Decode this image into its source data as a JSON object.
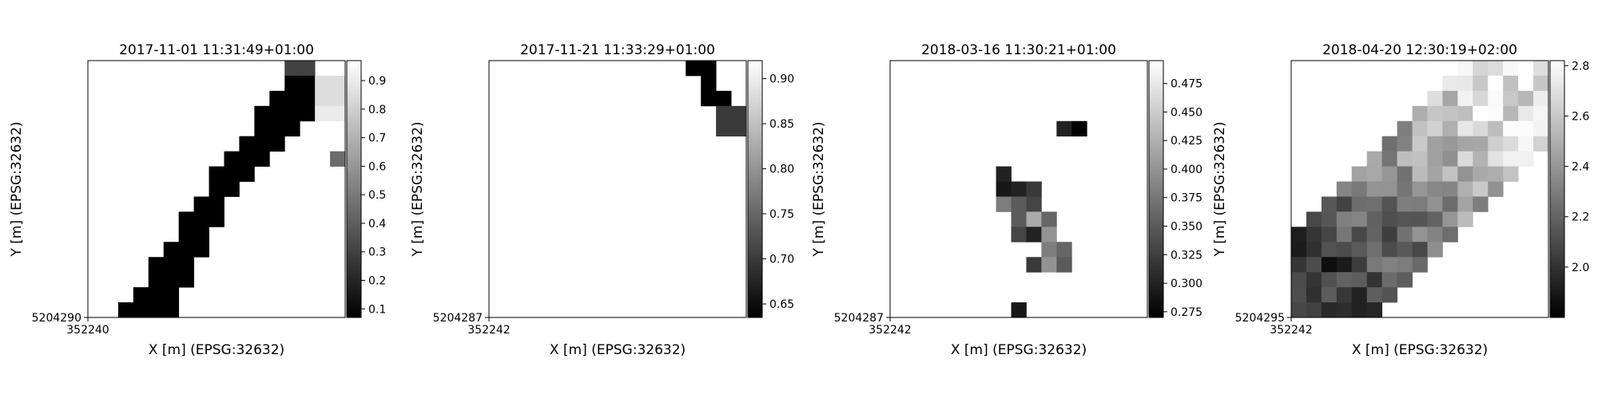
{
  "chart_data": [
    {
      "type": "heatmap",
      "title": "2017-11-01 11:31:49+01:00",
      "xlabel": "X [m] (EPSG:32632)",
      "ylabel": "Y [m] (EPSG:32632)",
      "x_tick_label": "352240",
      "y_tick_label": "5204290",
      "colormap": "gray",
      "clim": [
        0.07,
        0.97
      ],
      "colorbar_ticks": [
        "0.1",
        "0.2",
        "0.3",
        "0.4",
        "0.5",
        "0.6",
        "0.7",
        "0.8",
        "0.9"
      ],
      "grid_size": [
        17,
        17
      ],
      "cells": [
        [
          13,
          0,
          0.3
        ],
        [
          14,
          0,
          0.3
        ],
        [
          13,
          1,
          0.07
        ],
        [
          14,
          1,
          0.07
        ],
        [
          15,
          1,
          0.85
        ],
        [
          16,
          1,
          0.85
        ],
        [
          12,
          2,
          0.07
        ],
        [
          13,
          2,
          0.07
        ],
        [
          14,
          2,
          0.07
        ],
        [
          15,
          2,
          0.85
        ],
        [
          16,
          2,
          0.85
        ],
        [
          11,
          3,
          0.07
        ],
        [
          12,
          3,
          0.07
        ],
        [
          13,
          3,
          0.07
        ],
        [
          14,
          3,
          0.07
        ],
        [
          15,
          3,
          0.9
        ],
        [
          16,
          3,
          0.9
        ],
        [
          11,
          4,
          0.07
        ],
        [
          12,
          4,
          0.07
        ],
        [
          13,
          4,
          0.07
        ],
        [
          10,
          5,
          0.07
        ],
        [
          11,
          5,
          0.07
        ],
        [
          12,
          5,
          0.07
        ],
        [
          9,
          6,
          0.07
        ],
        [
          10,
          6,
          0.07
        ],
        [
          11,
          6,
          0.07
        ],
        [
          16,
          6,
          0.45
        ],
        [
          8,
          7,
          0.07
        ],
        [
          9,
          7,
          0.07
        ],
        [
          10,
          7,
          0.07
        ],
        [
          8,
          8,
          0.07
        ],
        [
          9,
          8,
          0.07
        ],
        [
          7,
          9,
          0.07
        ],
        [
          8,
          9,
          0.07
        ],
        [
          6,
          10,
          0.07
        ],
        [
          7,
          10,
          0.07
        ],
        [
          8,
          10,
          0.07
        ],
        [
          6,
          11,
          0.07
        ],
        [
          7,
          11,
          0.07
        ],
        [
          5,
          12,
          0.07
        ],
        [
          6,
          12,
          0.07
        ],
        [
          7,
          12,
          0.07
        ],
        [
          4,
          13,
          0.07
        ],
        [
          5,
          13,
          0.07
        ],
        [
          6,
          13,
          0.07
        ],
        [
          4,
          14,
          0.07
        ],
        [
          5,
          14,
          0.07
        ],
        [
          6,
          14,
          0.07
        ],
        [
          3,
          15,
          0.07
        ],
        [
          4,
          15,
          0.07
        ],
        [
          5,
          15,
          0.07
        ],
        [
          2,
          16,
          0.07
        ],
        [
          3,
          16,
          0.07
        ],
        [
          4,
          16,
          0.07
        ],
        [
          5,
          16,
          0.07
        ],
        [
          1,
          17,
          0.07
        ],
        [
          2,
          17,
          0.07
        ],
        [
          0,
          18,
          0.07
        ],
        [
          1,
          18,
          0.07
        ],
        [
          0,
          19,
          0.07
        ],
        [
          1,
          19,
          0.07
        ]
      ]
    },
    {
      "type": "heatmap",
      "title": "2017-11-21 11:33:29+01:00",
      "xlabel": "X [m] (EPSG:32632)",
      "ylabel": "Y [m] (EPSG:32632)",
      "x_tick_label": "352242",
      "y_tick_label": "5204287",
      "colormap": "gray",
      "clim": [
        0.635,
        0.92
      ],
      "colorbar_ticks": [
        "0.65",
        "0.70",
        "0.75",
        "0.80",
        "0.85",
        "0.90"
      ],
      "grid_size": [
        17,
        17
      ],
      "cells": [
        [
          13,
          0,
          0.635
        ],
        [
          14,
          0,
          0.635
        ],
        [
          14,
          1,
          0.635
        ],
        [
          14,
          2,
          0.635
        ],
        [
          15,
          2,
          0.635
        ],
        [
          15,
          3,
          0.7
        ],
        [
          16,
          3,
          0.7
        ],
        [
          15,
          4,
          0.7
        ],
        [
          16,
          4,
          0.7
        ]
      ]
    },
    {
      "type": "heatmap",
      "title": "2018-03-16 11:30:21+01:00",
      "xlabel": "X [m] (EPSG:32632)",
      "ylabel": "Y [m] (EPSG:32632)",
      "x_tick_label": "352242",
      "y_tick_label": "5204287",
      "colormap": "gray",
      "clim": [
        0.27,
        0.495
      ],
      "colorbar_ticks": [
        "0.275",
        "0.300",
        "0.325",
        "0.350",
        "0.375",
        "0.400",
        "0.425",
        "0.450",
        "0.475"
      ],
      "grid_size": [
        17,
        17
      ],
      "cells": [
        [
          11,
          4,
          0.3
        ],
        [
          12,
          4,
          0.27
        ],
        [
          7,
          7,
          0.3
        ],
        [
          7,
          8,
          0.29
        ],
        [
          8,
          8,
          0.3
        ],
        [
          9,
          8,
          0.32
        ],
        [
          7,
          9,
          0.38
        ],
        [
          8,
          9,
          0.35
        ],
        [
          9,
          9,
          0.33
        ],
        [
          8,
          10,
          0.35
        ],
        [
          9,
          10,
          0.42
        ],
        [
          10,
          10,
          0.36
        ],
        [
          8,
          11,
          0.33
        ],
        [
          9,
          11,
          0.3
        ],
        [
          10,
          11,
          0.4
        ],
        [
          10,
          12,
          0.38
        ],
        [
          11,
          12,
          0.36
        ],
        [
          9,
          13,
          0.32
        ],
        [
          10,
          13,
          0.4
        ],
        [
          11,
          13,
          0.35
        ],
        [
          8,
          16,
          0.29
        ]
      ]
    },
    {
      "type": "heatmap",
      "title": "2018-04-20 12:30:19+02:00",
      "xlabel": "X [m] (EPSG:32632)",
      "ylabel": "Y [m] (EPSG:32632)",
      "x_tick_label": "352242",
      "y_tick_label": "5204295",
      "colormap": "gray",
      "clim": [
        1.8,
        2.82
      ],
      "colorbar_ticks": [
        "2.0",
        "2.2",
        "2.4",
        "2.6",
        "2.8"
      ],
      "grid_size": [
        17,
        17
      ],
      "description_pattern": "diagonal band from lower-left to upper-right",
      "band": {
        "center_start": [
          3,
          14
        ],
        "center_end": [
          14,
          3
        ],
        "half_width": 4.2
      },
      "ramp": {
        "low": 1.85,
        "high": 2.75
      }
    }
  ]
}
